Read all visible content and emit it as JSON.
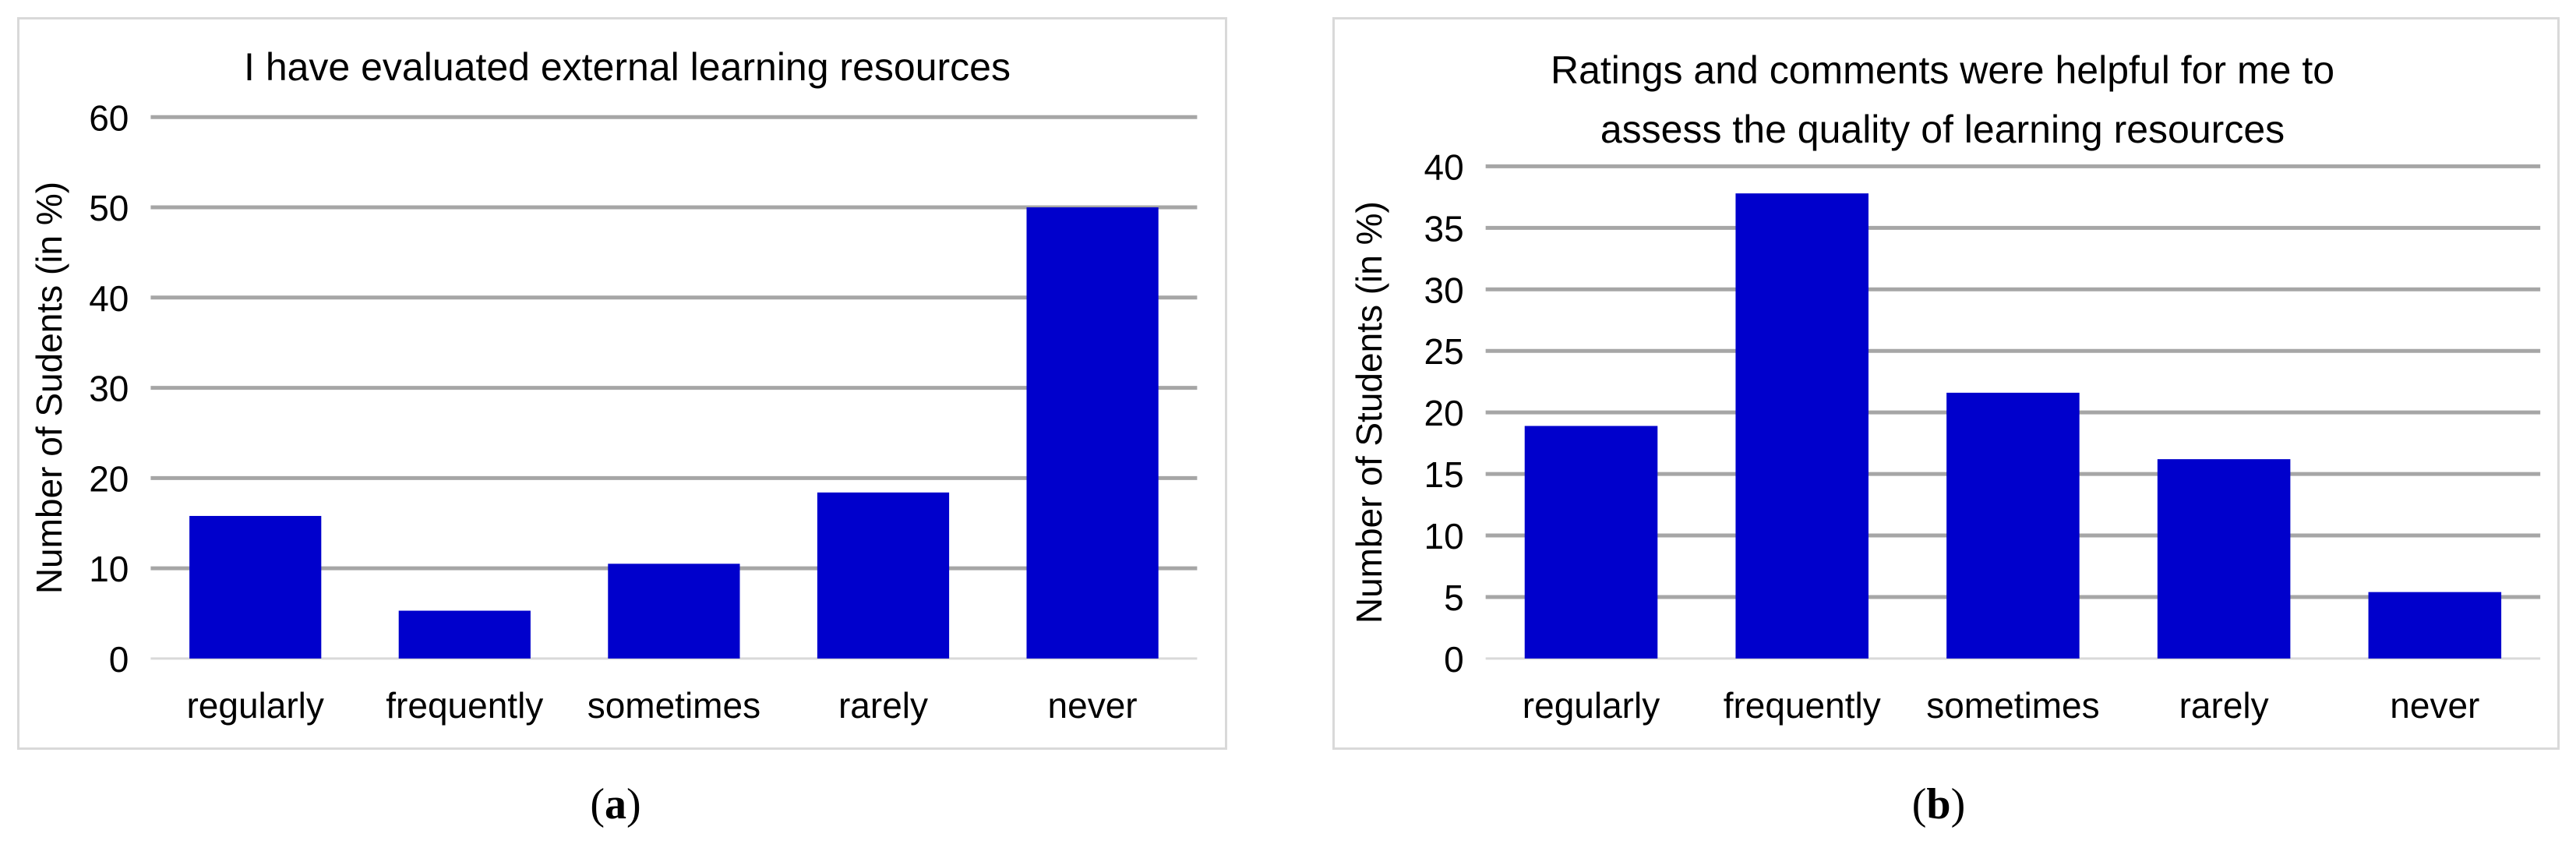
{
  "charts": [
    {
      "id": "a",
      "subcaption": "a",
      "chart_data": {
        "type": "bar",
        "title": [
          "I have evaluated external learning resources"
        ],
        "ylabel": "Number of Sudents (in %)",
        "xlabel": "",
        "categories": [
          "regularly",
          "frequently",
          "sometimes",
          "rarely",
          "never"
        ],
        "values": [
          15.8,
          5.3,
          10.5,
          18.4,
          50.0
        ],
        "ylim": [
          0,
          60
        ],
        "yticks": [
          "0",
          "10",
          "20",
          "30",
          "40",
          "50",
          "60"
        ],
        "grid": true,
        "bar_color": "#0000cc"
      }
    },
    {
      "id": "b",
      "subcaption": "b",
      "chart_data": {
        "type": "bar",
        "title": [
          "Ratings and comments were helpful for me to",
          "assess the quality of learning resources"
        ],
        "ylabel": "Number of Students (in %)",
        "xlabel": "",
        "categories": [
          "regularly",
          "frequently",
          "sometimes",
          "rarely",
          "never"
        ],
        "values": [
          18.9,
          37.8,
          21.6,
          16.2,
          5.4
        ],
        "ylim": [
          0,
          40
        ],
        "yticks": [
          "0",
          "5",
          "10",
          "15",
          "20",
          "25",
          "30",
          "35",
          "40"
        ],
        "grid": true,
        "bar_color": "#0000cc"
      }
    }
  ]
}
